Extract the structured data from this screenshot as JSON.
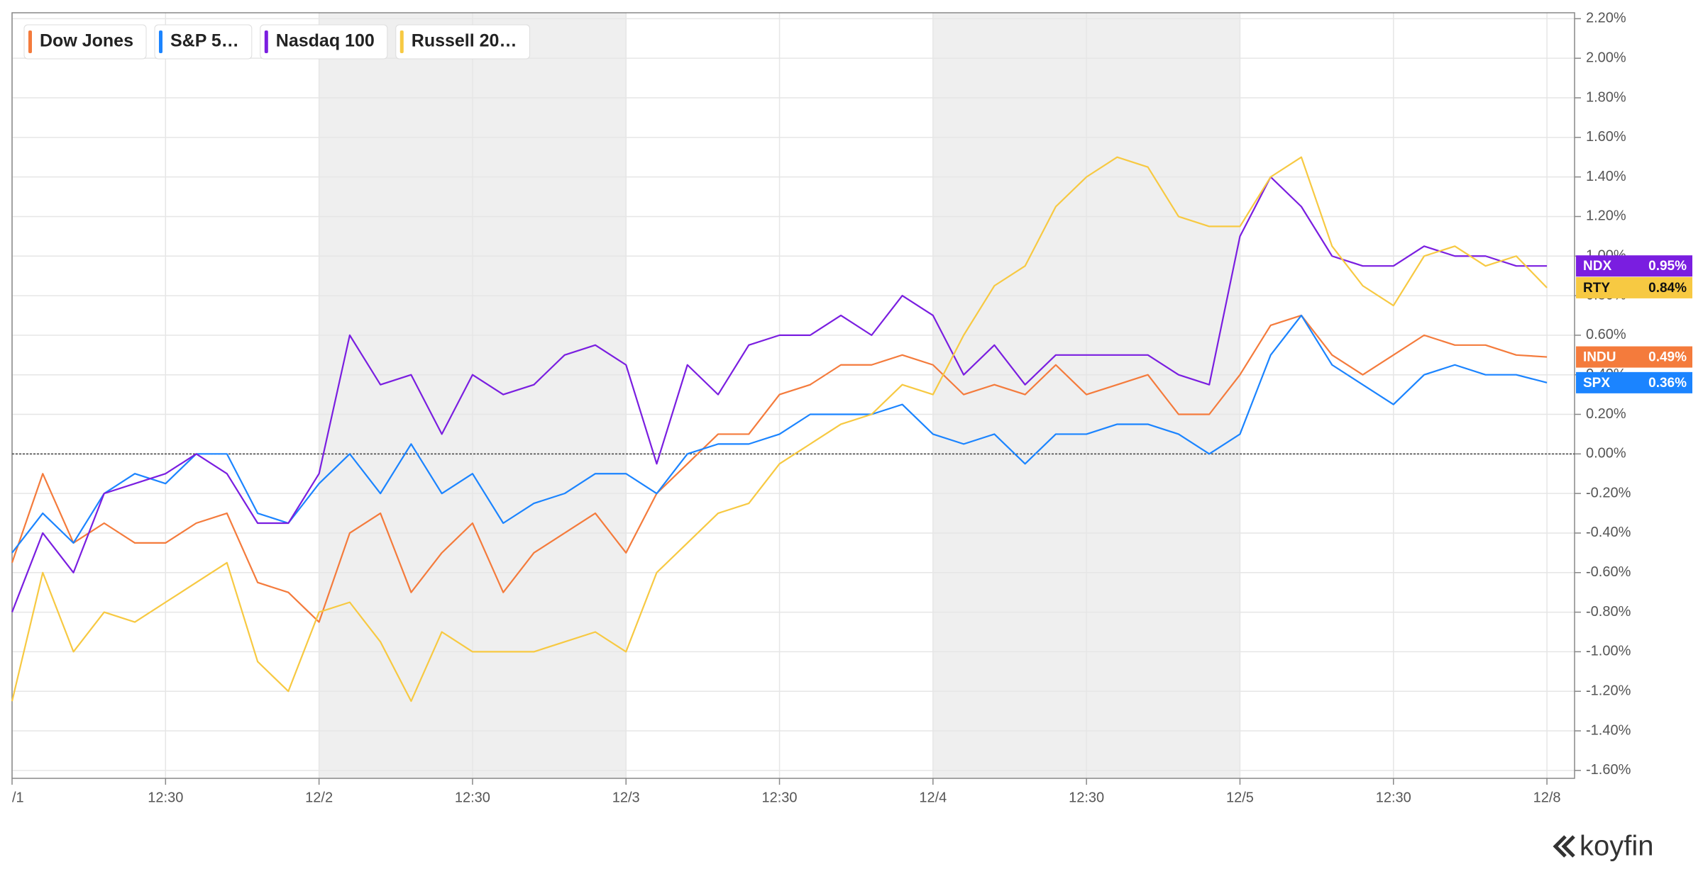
{
  "chart_data": {
    "type": "line",
    "x": [
      0,
      0.1,
      0.2,
      0.3,
      0.4,
      0.5,
      0.6,
      0.7,
      0.8,
      0.9,
      1,
      1.1,
      1.2,
      1.3,
      1.4,
      1.5,
      1.6,
      1.7,
      1.8,
      1.9,
      2,
      2.1,
      2.2,
      2.3,
      2.4,
      2.5,
      2.6,
      2.7,
      2.8,
      2.9,
      3,
      3.1,
      3.2,
      3.3,
      3.4,
      3.5,
      3.6,
      3.7,
      3.8,
      3.9,
      4,
      4.1,
      4.2,
      4.3,
      4.4,
      4.5,
      4.6,
      4.7,
      4.8,
      4.9,
      5
    ],
    "xlim": [
      0,
      5.09
    ],
    "xticks": [
      {
        "value": 0,
        "label": "/1"
      },
      {
        "value": 0.5,
        "label": "12:30"
      },
      {
        "value": 1,
        "label": "12/2"
      },
      {
        "value": 1.5,
        "label": "12:30"
      },
      {
        "value": 2,
        "label": "12/3"
      },
      {
        "value": 2.5,
        "label": "12:30"
      },
      {
        "value": 3,
        "label": "12/4"
      },
      {
        "value": 3.5,
        "label": "12:30"
      },
      {
        "value": 4,
        "label": "12/5"
      },
      {
        "value": 4.5,
        "label": "12:30"
      },
      {
        "value": 5,
        "label": "12/8"
      }
    ],
    "ylim": [
      -1.64,
      2.23
    ],
    "yticks": [
      {
        "value": -1.6,
        "label": "-1.60%"
      },
      {
        "value": -1.4,
        "label": "-1.40%"
      },
      {
        "value": -1.2,
        "label": "-1.20%"
      },
      {
        "value": -1,
        "label": "-1.00%"
      },
      {
        "value": -0.8,
        "label": "-0.80%"
      },
      {
        "value": -0.6,
        "label": "-0.60%"
      },
      {
        "value": -0.4,
        "label": "-0.40%"
      },
      {
        "value": -0.2,
        "label": "-0.20%"
      },
      {
        "value": 0,
        "label": "0.00%"
      },
      {
        "value": 0.2,
        "label": "0.20%"
      },
      {
        "value": 0.4,
        "label": "0.40%"
      },
      {
        "value": 0.6,
        "label": "0.60%"
      },
      {
        "value": 0.8,
        "label": "0.80%"
      },
      {
        "value": 1,
        "label": "1.00%"
      },
      {
        "value": 1.2,
        "label": "1.20%"
      },
      {
        "value": 1.4,
        "label": "1.40%"
      },
      {
        "value": 1.6,
        "label": "1.60%"
      },
      {
        "value": 1.8,
        "label": "1.80%"
      },
      {
        "value": 2,
        "label": "2.00%"
      },
      {
        "value": 2.2,
        "label": "2.20%"
      }
    ],
    "grid": true,
    "legend": "top-left",
    "series": [
      {
        "name": "Dow Jones",
        "color": "#f47b3c",
        "tag": "INDU",
        "end_label": {
          "value": 0.49,
          "label": "0.49%"
        },
        "values": [
          -0.55,
          -0.1,
          -0.45,
          -0.35,
          -0.45,
          -0.45,
          -0.35,
          -0.3,
          -0.65,
          -0.7,
          -0.85,
          -0.4,
          -0.3,
          -0.7,
          -0.5,
          -0.35,
          -0.7,
          -0.5,
          -0.4,
          -0.3,
          -0.5,
          -0.2,
          -0.05,
          0.1,
          0.1,
          0.3,
          0.35,
          0.45,
          0.45,
          0.5,
          0.45,
          0.3,
          0.35,
          0.3,
          0.45,
          0.3,
          0.35,
          0.4,
          0.2,
          0.2,
          0.4,
          0.65,
          0.7,
          0.5,
          0.4,
          0.5,
          0.6,
          0.55,
          0.55,
          0.5,
          0.49
        ]
      },
      {
        "name": "S&P 5…",
        "color": "#1b84ff",
        "tag": "SPX",
        "end_label": {
          "value": 0.36,
          "label": "0.36%"
        },
        "values": [
          -0.5,
          -0.3,
          -0.45,
          -0.2,
          -0.1,
          -0.15,
          0,
          0,
          -0.3,
          -0.35,
          -0.15,
          0,
          -0.2,
          0.05,
          -0.2,
          -0.1,
          -0.35,
          -0.25,
          -0.2,
          -0.1,
          -0.1,
          -0.2,
          0,
          0.05,
          0.05,
          0.1,
          0.2,
          0.2,
          0.2,
          0.25,
          0.1,
          0.05,
          0.1,
          -0.05,
          0.1,
          0.1,
          0.15,
          0.15,
          0.1,
          0,
          0.1,
          0.5,
          0.7,
          0.45,
          0.35,
          0.25,
          0.4,
          0.45,
          0.4,
          0.4,
          0.36
        ]
      },
      {
        "name": "Nasdaq 100",
        "color": "#7a1ee0",
        "tag": "NDX",
        "end_label": {
          "value": 0.95,
          "label": "0.95%"
        },
        "values": [
          -0.8,
          -0.4,
          -0.6,
          -0.2,
          -0.15,
          -0.1,
          0,
          -0.1,
          -0.35,
          -0.35,
          -0.1,
          0.6,
          0.35,
          0.4,
          0.1,
          0.4,
          0.3,
          0.35,
          0.5,
          0.55,
          0.45,
          -0.05,
          0.45,
          0.3,
          0.55,
          0.6,
          0.6,
          0.7,
          0.6,
          0.8,
          0.7,
          0.4,
          0.55,
          0.35,
          0.5,
          0.5,
          0.5,
          0.5,
          0.4,
          0.35,
          1.1,
          1.4,
          1.25,
          1,
          0.95,
          0.95,
          1.05,
          1,
          1,
          0.95,
          0.95
        ]
      },
      {
        "name": "Russell 20…",
        "color": "#f7c942",
        "tag": "RTY",
        "end_label": {
          "value": 0.84,
          "label": "0.84%"
        },
        "values": [
          -1.25,
          -0.6,
          -1,
          -0.8,
          -0.85,
          -0.75,
          -0.65,
          -0.55,
          -1.05,
          -1.2,
          -0.8,
          -0.75,
          -0.95,
          -1.25,
          -0.9,
          -1,
          -1,
          -1,
          -0.95,
          -0.9,
          -1,
          -0.6,
          -0.45,
          -0.3,
          -0.25,
          -0.05,
          0.05,
          0.15,
          0.2,
          0.35,
          0.3,
          0.6,
          0.85,
          0.95,
          1.25,
          1.4,
          1.5,
          1.45,
          1.2,
          1.15,
          1.15,
          1.4,
          1.5,
          1.05,
          0.85,
          0.75,
          1,
          1.05,
          0.95,
          1,
          0.84
        ]
      }
    ]
  },
  "watermark": "koyfin"
}
